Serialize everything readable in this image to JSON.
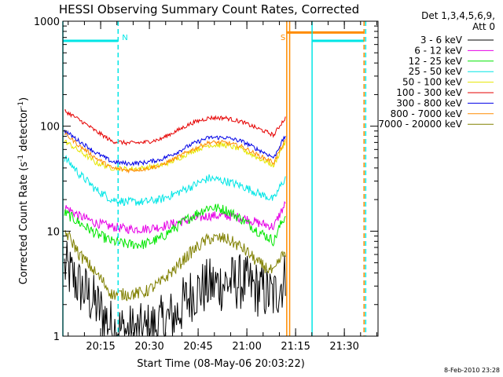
{
  "chart_data": {
    "type": "line",
    "title": "HESSI Observing Summary Count Rates, Corrected",
    "xlabel": "Start Time (08-May-06 20:03:22)",
    "ylabel_main": "Corrected Count Rate (s",
    "ylabel_sup1": "-1",
    "ylabel_mid": " detector",
    "ylabel_sup2": "-1",
    "ylabel_end": ")",
    "yscale": "log",
    "ylim": [
      1,
      1000
    ],
    "xlim_minutes": [
      0,
      97
    ],
    "y_ticks": [
      {
        "value": 1,
        "label": "1"
      },
      {
        "value": 10,
        "label": "10"
      },
      {
        "value": 100,
        "label": "100"
      },
      {
        "value": 1000,
        "label": "1000"
      }
    ],
    "x_ticks": [
      {
        "minute": 11.63,
        "label": "20:15"
      },
      {
        "minute": 26.63,
        "label": "20:30"
      },
      {
        "minute": 41.63,
        "label": "20:45"
      },
      {
        "minute": 56.63,
        "label": "21:00"
      },
      {
        "minute": 71.63,
        "label": "21:15"
      },
      {
        "minute": 86.63,
        "label": "21:30"
      }
    ],
    "legend_title1": "Det 1,3,4,5,6,9,",
    "legend_title2": "Att 0",
    "series": [
      {
        "name": "3 - 6 keV",
        "color": "#000000",
        "values": [
          4.5,
          3,
          2,
          1.2,
          1.1,
          1.1,
          1.3,
          1.6,
          2.6,
          3.0,
          3.2,
          3.3,
          2.8,
          2.4,
          3.6
        ]
      },
      {
        "name": "6 - 12 keV",
        "color": "#e600e6",
        "values": [
          17,
          14,
          12,
          11,
          10.5,
          10.5,
          11,
          12,
          13,
          14,
          14,
          13.5,
          12,
          11,
          18
        ]
      },
      {
        "name": "12 - 25 keV",
        "color": "#00e600",
        "values": [
          15,
          12,
          9.5,
          8,
          7.5,
          7.5,
          8.5,
          11,
          14,
          17,
          16,
          13,
          10,
          8,
          14
        ]
      },
      {
        "name": "25 - 50 keV",
        "color": "#00e6e6",
        "values": [
          50,
          35,
          25,
          20,
          19,
          19,
          20,
          23,
          27,
          32,
          30,
          27,
          23,
          20,
          32
        ]
      },
      {
        "name": "50 - 100 keV",
        "color": "#e6e600",
        "values": [
          72,
          58,
          45,
          40,
          39,
          40,
          42,
          48,
          58,
          66,
          66,
          60,
          50,
          42,
          70
        ]
      },
      {
        "name": "100 - 300 keV",
        "color": "#e60000",
        "values": [
          140,
          115,
          90,
          72,
          69,
          70,
          75,
          90,
          108,
          120,
          120,
          110,
          95,
          82,
          120
        ]
      },
      {
        "name": "300 - 800 keV",
        "color": "#0000e6",
        "values": [
          90,
          72,
          56,
          46,
          44,
          45,
          48,
          56,
          68,
          78,
          78,
          72,
          60,
          50,
          80
        ]
      },
      {
        "name": "800 - 7000 keV",
        "color": "#ff8c00",
        "values": [
          85,
          65,
          50,
          40,
          38,
          39,
          42,
          50,
          60,
          70,
          70,
          64,
          53,
          45,
          72
        ]
      },
      {
        "name": "7000 - 20000 keV",
        "color": "#808000",
        "values": [
          10,
          6,
          4,
          2.5,
          2.5,
          2.6,
          3.2,
          4.5,
          6.5,
          8.5,
          8.5,
          7,
          5,
          4,
          6.5
        ]
      }
    ],
    "x_sample_minutes": [
      0.5,
      5,
      10,
      15,
      20,
      25,
      30,
      35,
      40,
      45,
      50,
      55,
      60,
      65,
      68.5
    ],
    "flag_lines": [
      {
        "label": "",
        "color": "#00e6e6",
        "style": "solid",
        "x_minutes": [
          0
        ],
        "level": 650,
        "level_range": [
          0,
          17
        ]
      },
      {
        "label": "N",
        "color": "#00e6e6",
        "style": "dashed",
        "x_minutes": [
          17
        ],
        "level": null
      },
      {
        "label": "S",
        "color": "#ff8c00",
        "style": "solid",
        "x_minutes": [
          68.9,
          69.8
        ],
        "level": 780,
        "level_range": [
          68.9,
          92.7
        ]
      },
      {
        "label": "",
        "color": "#00e6e6",
        "style": "solid",
        "x_minutes": [
          76.7
        ],
        "level": 650,
        "level_range": [
          76.7,
          92.7
        ]
      },
      {
        "label": "",
        "color": "#ff8c00",
        "style": "dashed",
        "x_minutes": [
          92.7
        ],
        "level": null
      },
      {
        "label": "",
        "color": "#00e6e6",
        "style": "dashed",
        "x_minutes": [
          93.2
        ],
        "level": null
      }
    ],
    "timestamp": "8-Feb-2010 23:28"
  }
}
